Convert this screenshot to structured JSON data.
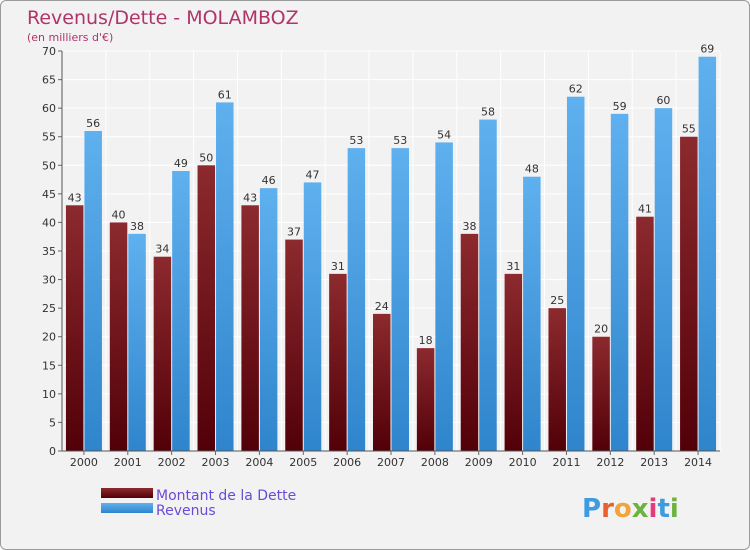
{
  "chart_data": {
    "type": "bar",
    "title": "Revenus/Dette - MOLAMBOZ",
    "subtitle": "(en milliers d'€)",
    "categories": [
      "2000",
      "2001",
      "2002",
      "2003",
      "2004",
      "2005",
      "2006",
      "2007",
      "2008",
      "2009",
      "2010",
      "2011",
      "2012",
      "2013",
      "2014"
    ],
    "series": [
      {
        "name": "Montant de la Dette",
        "values": [
          43,
          40,
          34,
          50,
          43,
          37,
          31,
          24,
          18,
          38,
          31,
          25,
          20,
          41,
          55
        ],
        "color": "#7a1f22"
      },
      {
        "name": "Revenus",
        "values": [
          56,
          38,
          49,
          61,
          46,
          47,
          53,
          53,
          54,
          58,
          48,
          62,
          59,
          60,
          69
        ],
        "color": "#4fa3e6"
      }
    ],
    "yticks": [
      0,
      5,
      10,
      15,
      20,
      25,
      30,
      35,
      40,
      45,
      50,
      55,
      60,
      65,
      70
    ],
    "ylim": [
      0,
      70
    ],
    "grid": true,
    "legend_position": "bottom-left"
  },
  "branding": {
    "logo_text": "Proxiti"
  }
}
